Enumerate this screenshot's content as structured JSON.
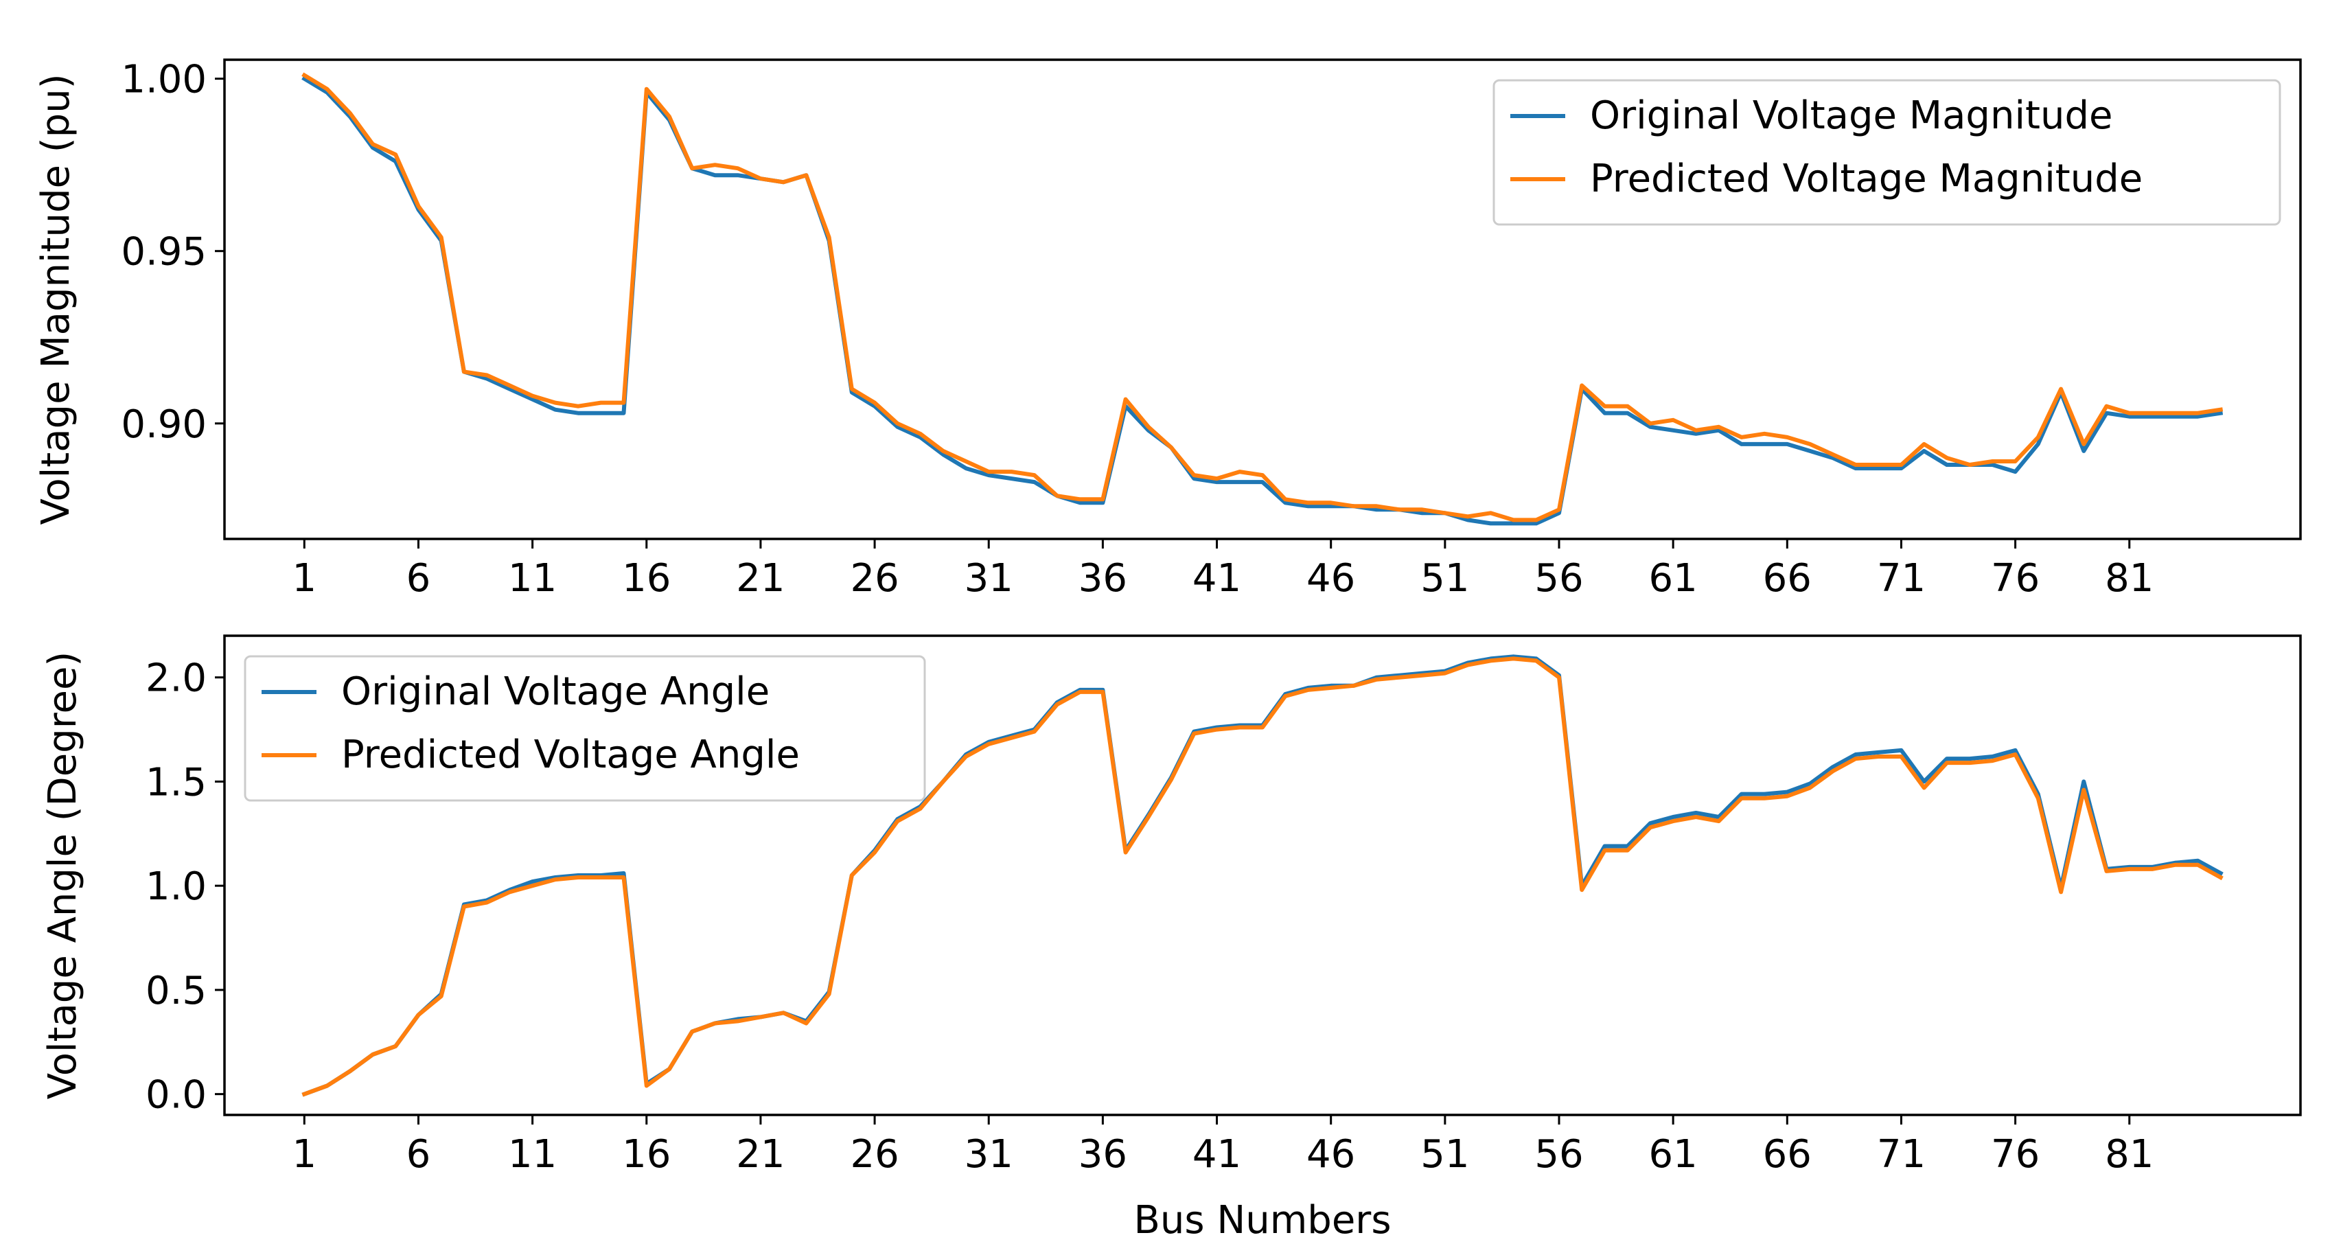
{
  "chart_data": [
    {
      "type": "line",
      "title": "",
      "xlabel": "",
      "ylabel": "Voltage Magnitude (pu)",
      "xlim": [
        -2.5,
        88.5
      ],
      "ylim": [
        0.8665,
        1.0055
      ],
      "xticks": [
        1,
        6,
        11,
        16,
        21,
        26,
        31,
        36,
        41,
        46,
        51,
        56,
        61,
        66,
        71,
        76,
        81
      ],
      "xtick_labels": [
        "1",
        "6",
        "11",
        "16",
        "21",
        "26",
        "31",
        "36",
        "41",
        "46",
        "51",
        "56",
        "61",
        "66",
        "71",
        "76",
        "81"
      ],
      "yticks": [
        0.9,
        0.95,
        1.0
      ],
      "ytick_labels": [
        "0.90",
        "0.95",
        "1.00"
      ],
      "grid": false,
      "legend_position": "top-right",
      "x": [
        1,
        2,
        3,
        4,
        5,
        6,
        7,
        8,
        9,
        10,
        11,
        12,
        13,
        14,
        15,
        16,
        17,
        18,
        19,
        20,
        21,
        22,
        23,
        24,
        25,
        26,
        27,
        28,
        29,
        30,
        31,
        32,
        33,
        34,
        35,
        36,
        37,
        38,
        39,
        40,
        41,
        42,
        43,
        44,
        45,
        46,
        47,
        48,
        49,
        50,
        51,
        52,
        53,
        54,
        55,
        56,
        57,
        58,
        59,
        60,
        61,
        62,
        63,
        64,
        65,
        66,
        67,
        68,
        69,
        70,
        71,
        72,
        73,
        74,
        75,
        76,
        77,
        78,
        79,
        80,
        81,
        82,
        83,
        84,
        85
      ],
      "series": [
        {
          "name": "Original Voltage Magnitude",
          "color": "#1f77b4",
          "values": [
            1.0,
            0.996,
            0.989,
            0.98,
            0.976,
            0.962,
            0.953,
            0.915,
            0.913,
            0.91,
            0.907,
            0.904,
            0.903,
            0.903,
            0.903,
            0.996,
            0.988,
            0.974,
            0.972,
            0.972,
            0.971,
            0.97,
            0.972,
            0.953,
            0.909,
            0.905,
            0.899,
            0.896,
            0.891,
            0.887,
            0.885,
            0.884,
            0.883,
            0.879,
            0.877,
            0.877,
            0.905,
            0.898,
            0.893,
            0.884,
            0.883,
            0.883,
            0.883,
            0.877,
            0.876,
            0.876,
            0.876,
            0.875,
            0.875,
            0.874,
            0.874,
            0.872,
            0.871,
            0.871,
            0.871,
            0.874,
            0.91,
            0.903,
            0.903,
            0.899,
            0.898,
            0.897,
            0.898,
            0.894,
            0.894,
            0.894,
            0.892,
            0.89,
            0.887,
            0.887,
            0.887,
            0.892,
            0.888,
            0.888,
            0.888,
            0.886,
            0.894,
            0.909,
            0.892,
            0.903,
            0.902,
            0.902,
            0.902,
            0.902,
            0.903
          ]
        },
        {
          "name": "Predicted Voltage Magnitude",
          "color": "#ff7f0e",
          "values": [
            1.001,
            0.997,
            0.99,
            0.981,
            0.978,
            0.963,
            0.954,
            0.915,
            0.914,
            0.911,
            0.908,
            0.906,
            0.905,
            0.906,
            0.906,
            0.997,
            0.989,
            0.974,
            0.975,
            0.974,
            0.971,
            0.97,
            0.972,
            0.954,
            0.91,
            0.906,
            0.9,
            0.897,
            0.892,
            0.889,
            0.886,
            0.886,
            0.885,
            0.879,
            0.878,
            0.878,
            0.907,
            0.899,
            0.893,
            0.885,
            0.884,
            0.886,
            0.885,
            0.878,
            0.877,
            0.877,
            0.876,
            0.876,
            0.875,
            0.875,
            0.874,
            0.873,
            0.874,
            0.872,
            0.872,
            0.875,
            0.911,
            0.905,
            0.905,
            0.9,
            0.901,
            0.898,
            0.899,
            0.896,
            0.897,
            0.896,
            0.894,
            0.891,
            0.888,
            0.888,
            0.888,
            0.894,
            0.89,
            0.888,
            0.889,
            0.889,
            0.896,
            0.91,
            0.894,
            0.905,
            0.903,
            0.903,
            0.903,
            0.903,
            0.904
          ]
        }
      ]
    },
    {
      "type": "line",
      "title": "",
      "xlabel": "Bus Numbers",
      "ylabel": "Voltage Angle (Degree)",
      "xlim": [
        -2.5,
        88.5
      ],
      "ylim": [
        -0.1,
        2.2
      ],
      "xticks": [
        1,
        6,
        11,
        16,
        21,
        26,
        31,
        36,
        41,
        46,
        51,
        56,
        61,
        66,
        71,
        76,
        81
      ],
      "xtick_labels": [
        "1",
        "6",
        "11",
        "16",
        "21",
        "26",
        "31",
        "36",
        "41",
        "46",
        "51",
        "56",
        "61",
        "66",
        "71",
        "76",
        "81"
      ],
      "yticks": [
        0.0,
        0.5,
        1.0,
        1.5,
        2.0
      ],
      "ytick_labels": [
        "0.0",
        "0.5",
        "1.0",
        "1.5",
        "2.0"
      ],
      "grid": false,
      "legend_position": "top-left",
      "x": [
        1,
        2,
        3,
        4,
        5,
        6,
        7,
        8,
        9,
        10,
        11,
        12,
        13,
        14,
        15,
        16,
        17,
        18,
        19,
        20,
        21,
        22,
        23,
        24,
        25,
        26,
        27,
        28,
        29,
        30,
        31,
        32,
        33,
        34,
        35,
        36,
        37,
        38,
        39,
        40,
        41,
        42,
        43,
        44,
        45,
        46,
        47,
        48,
        49,
        50,
        51,
        52,
        53,
        54,
        55,
        56,
        57,
        58,
        59,
        60,
        61,
        62,
        63,
        64,
        65,
        66,
        67,
        68,
        69,
        70,
        71,
        72,
        73,
        74,
        75,
        76,
        77,
        78,
        79,
        80,
        81,
        82,
        83,
        84,
        85
      ],
      "series": [
        {
          "name": "Original Voltage Angle",
          "color": "#1f77b4",
          "values": [
            0.0,
            0.04,
            0.11,
            0.19,
            0.23,
            0.38,
            0.48,
            0.91,
            0.93,
            0.98,
            1.02,
            1.04,
            1.05,
            1.05,
            1.06,
            0.05,
            0.12,
            0.3,
            0.34,
            0.36,
            0.37,
            0.39,
            0.35,
            0.49,
            1.05,
            1.17,
            1.32,
            1.38,
            1.5,
            1.63,
            1.69,
            1.72,
            1.75,
            1.88,
            1.94,
            1.94,
            1.17,
            1.34,
            1.52,
            1.74,
            1.76,
            1.77,
            1.77,
            1.92,
            1.95,
            1.96,
            1.96,
            2.0,
            2.01,
            2.02,
            2.03,
            2.07,
            2.09,
            2.1,
            2.09,
            2.01,
            1.0,
            1.19,
            1.19,
            1.3,
            1.33,
            1.35,
            1.33,
            1.44,
            1.44,
            1.45,
            1.49,
            1.57,
            1.63,
            1.64,
            1.65,
            1.5,
            1.61,
            1.61,
            1.62,
            1.65,
            1.44,
            0.99,
            1.5,
            1.08,
            1.09,
            1.09,
            1.11,
            1.12,
            1.06
          ]
        },
        {
          "name": "Predicted Voltage Angle",
          "color": "#ff7f0e",
          "values": [
            0.0,
            0.04,
            0.11,
            0.19,
            0.23,
            0.38,
            0.47,
            0.9,
            0.92,
            0.97,
            1.0,
            1.03,
            1.04,
            1.04,
            1.04,
            0.04,
            0.12,
            0.3,
            0.34,
            0.35,
            0.37,
            0.39,
            0.34,
            0.48,
            1.05,
            1.16,
            1.31,
            1.37,
            1.5,
            1.62,
            1.68,
            1.71,
            1.74,
            1.87,
            1.93,
            1.93,
            1.16,
            1.33,
            1.51,
            1.73,
            1.75,
            1.76,
            1.76,
            1.91,
            1.94,
            1.95,
            1.96,
            1.99,
            2.0,
            2.01,
            2.02,
            2.06,
            2.08,
            2.09,
            2.08,
            2.0,
            0.98,
            1.17,
            1.17,
            1.28,
            1.31,
            1.33,
            1.31,
            1.42,
            1.42,
            1.43,
            1.47,
            1.55,
            1.61,
            1.62,
            1.62,
            1.47,
            1.59,
            1.59,
            1.6,
            1.63,
            1.42,
            0.97,
            1.46,
            1.07,
            1.08,
            1.08,
            1.1,
            1.1,
            1.04
          ]
        }
      ]
    }
  ]
}
